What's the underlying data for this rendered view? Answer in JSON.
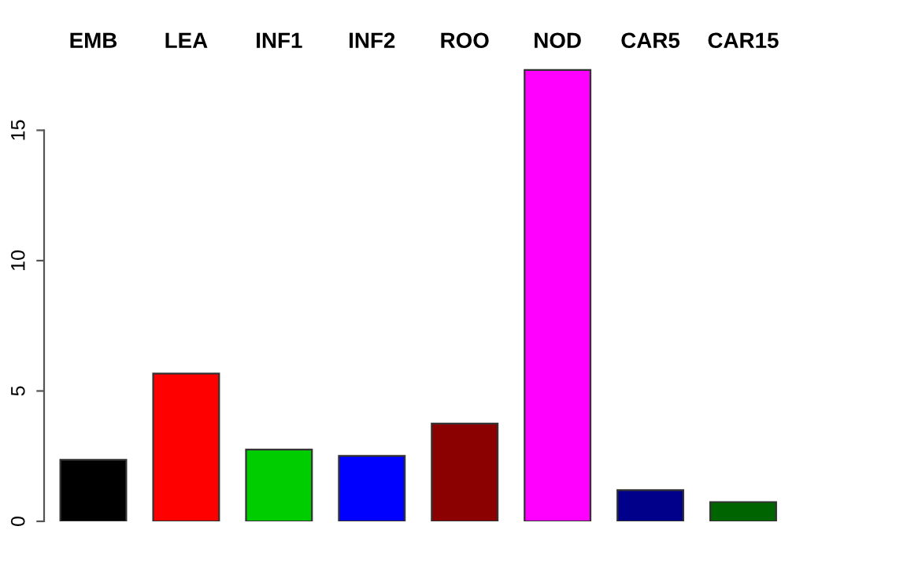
{
  "chart_data": {
    "type": "bar",
    "categories": [
      "EMB",
      "LEA",
      "INF1",
      "INF2",
      "ROO",
      "NOD",
      "CAR5",
      "CAR15"
    ],
    "values": [
      2.36,
      5.67,
      2.75,
      2.51,
      3.75,
      17.31,
      1.2,
      0.74
    ],
    "colors": [
      "#000000",
      "#ff0000",
      "#00cd00",
      "#0000ff",
      "#8b0000",
      "#ff00ff",
      "#00008b",
      "#006400"
    ],
    "ylim": [
      0,
      17.4
    ],
    "yticks": [
      0,
      5,
      10,
      15
    ],
    "grid": false,
    "legend": false
  }
}
